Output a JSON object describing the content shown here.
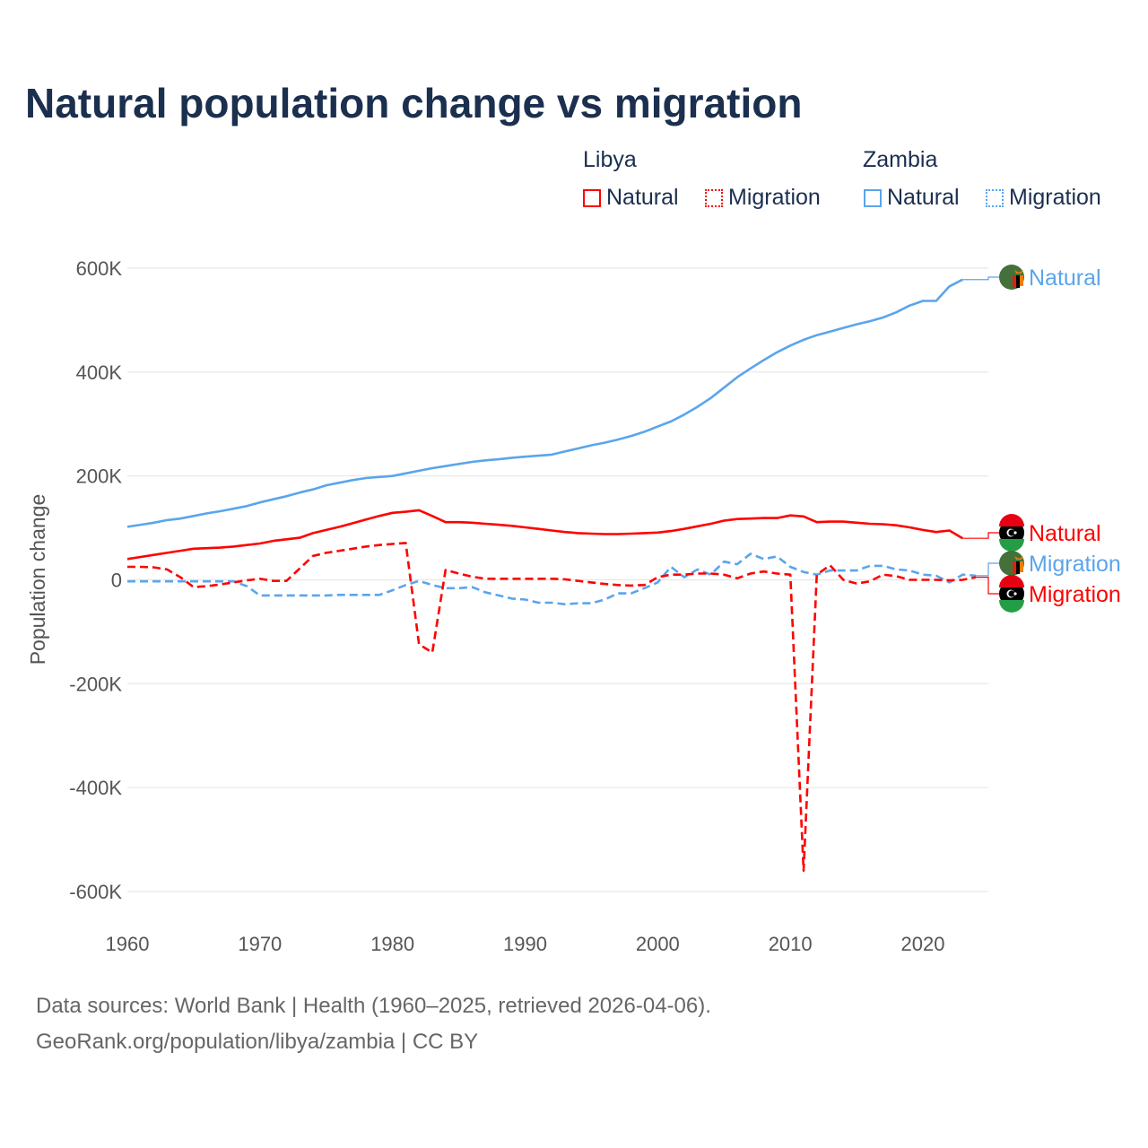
{
  "colors": {
    "libya": "#ff0000",
    "zambia": "#5aa5ec"
  },
  "chart_data": {
    "type": "line",
    "title": "Natural population change vs migration",
    "xlabel": "",
    "ylabel": "Population change",
    "xlim": [
      1960,
      2025
    ],
    "ylim": [
      -600000,
      600000
    ],
    "xticks": [
      {
        "v": 1960,
        "label": "1960"
      },
      {
        "v": 1970,
        "label": "1970"
      },
      {
        "v": 1980,
        "label": "1980"
      },
      {
        "v": 1990,
        "label": "1990"
      },
      {
        "v": 2000,
        "label": "2000"
      },
      {
        "v": 2010,
        "label": "2010"
      },
      {
        "v": 2020,
        "label": "2020"
      }
    ],
    "yticks": [
      {
        "v": 600000,
        "label": "600K"
      },
      {
        "v": 400000,
        "label": "400K"
      },
      {
        "v": 200000,
        "label": "200K"
      },
      {
        "v": 0,
        "label": "0"
      },
      {
        "v": -200000,
        "label": "-200K"
      },
      {
        "v": -400000,
        "label": "-400K"
      },
      {
        "v": -600000,
        "label": "-600K"
      }
    ],
    "grid": true,
    "legend": {
      "position": "top-right",
      "groups": [
        {
          "name": "Libya",
          "items": [
            "Natural",
            "Migration"
          ]
        },
        {
          "name": "Zambia",
          "items": [
            "Natural",
            "Migration"
          ]
        }
      ]
    },
    "x_start": 1960,
    "series": [
      {
        "name": "Zambia Natural",
        "country": "Zambia",
        "kind": "Natural",
        "label": "Natural",
        "dash": false,
        "color": "#5aa5ec",
        "values_k": [
          102,
          106,
          110,
          115,
          118,
          123,
          128,
          132,
          137,
          142,
          149,
          155,
          161,
          168,
          174,
          182,
          187,
          192,
          196,
          198,
          200,
          205,
          210,
          215,
          219,
          223,
          227,
          230,
          232,
          235,
          237,
          239,
          241,
          247,
          253,
          259,
          264,
          270,
          277,
          285,
          295,
          305,
          318,
          333,
          350,
          370,
          390,
          407,
          423,
          438,
          451,
          462,
          471,
          478,
          485,
          492,
          498,
          505,
          515,
          528,
          537,
          537,
          565,
          578
        ]
      },
      {
        "name": "Libya Natural",
        "country": "Libya",
        "kind": "Natural",
        "label": "Natural",
        "dash": false,
        "color": "#ff0000",
        "values_k": [
          40,
          44,
          48,
          52,
          56,
          60,
          61,
          62,
          64,
          67,
          70,
          75,
          78,
          81,
          90,
          96,
          102,
          109,
          116,
          123,
          129,
          131,
          134,
          123,
          111,
          111,
          110,
          108,
          106,
          104,
          101,
          98,
          95,
          92,
          90,
          89,
          88,
          88,
          89,
          90,
          91,
          94,
          98,
          103,
          108,
          114,
          117,
          118,
          119,
          119,
          124,
          122,
          111,
          112,
          112,
          110,
          108,
          107,
          105,
          101,
          96,
          92,
          95,
          80
        ]
      },
      {
        "name": "Zambia Migration",
        "country": "Zambia",
        "kind": "Migration",
        "label": "Migration",
        "dash": true,
        "color": "#5aa5ec",
        "values_k": [
          -3,
          -3,
          -3,
          -3,
          -3,
          -3,
          -3,
          -3,
          -3,
          -12,
          -30,
          -30,
          -30,
          -30,
          -30,
          -30,
          -29,
          -29,
          -29,
          -29,
          -20,
          -10,
          -2,
          -10,
          -16,
          -16,
          -14,
          -24,
          -30,
          -36,
          -38,
          -44,
          -44,
          -47,
          -45,
          -45,
          -38,
          -26,
          -26,
          -16,
          -5,
          25,
          5,
          20,
          10,
          35,
          30,
          50,
          40,
          45,
          25,
          15,
          10,
          18,
          18,
          18,
          27,
          27,
          20,
          18,
          10,
          8,
          -5,
          10,
          8
        ]
      },
      {
        "name": "Libya Migration",
        "country": "Libya",
        "kind": "Migration",
        "label": "Migration",
        "dash": true,
        "color": "#ff0000",
        "values_k": [
          25,
          25,
          24,
          20,
          5,
          -14,
          -12,
          -9,
          -5,
          -1,
          2,
          -2,
          -2,
          22,
          46,
          52,
          56,
          60,
          64,
          67,
          69,
          71,
          -124,
          -140,
          19,
          12,
          6,
          2,
          2,
          2,
          2,
          2,
          2,
          1,
          -2,
          -5,
          -8,
          -10,
          -11,
          -10,
          5,
          10,
          10,
          12,
          12,
          10,
          3,
          12,
          16,
          12,
          10,
          -560,
          10,
          28,
          0,
          -7,
          -3,
          10,
          7,
          0,
          0,
          0,
          -1,
          0,
          5
        ]
      }
    ]
  },
  "footer": {
    "line1": "Data sources: World Bank | Health (1960–2025, retrieved 2026-04-06).",
    "line2": "GeoRank.org/population/libya/zambia | CC BY"
  }
}
